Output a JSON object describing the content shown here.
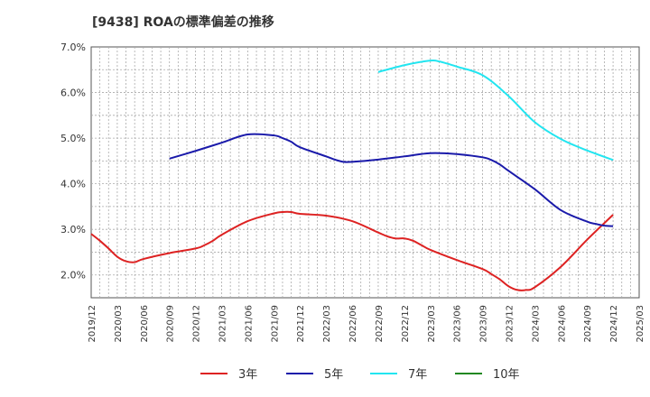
{
  "title": "[9438]  ROAの標準偏差の推移",
  "chart_data": {
    "type": "line",
    "title": "[9438]  ROAの標準偏差の推移",
    "xlabel": "",
    "ylabel": "",
    "x_ticks": [
      "2019/12",
      "2020/03",
      "2020/06",
      "2020/09",
      "2020/12",
      "2021/03",
      "2021/06",
      "2021/09",
      "2021/12",
      "2022/03",
      "2022/06",
      "2022/09",
      "2022/12",
      "2023/03",
      "2023/06",
      "2023/09",
      "2023/12",
      "2024/03",
      "2024/06",
      "2024/09",
      "2024/12",
      "2025/03"
    ],
    "y_ticks": [
      "2.0%",
      "3.0%",
      "4.0%",
      "5.0%",
      "6.0%",
      "7.0%"
    ],
    "ylim": [
      1.5,
      7.0
    ],
    "grid": true,
    "legend_position": "bottom",
    "series": [
      {
        "name": "3年",
        "color": "#dd2222",
        "x": [
          "2019/12",
          "2020/01",
          "2020/02",
          "2020/03",
          "2020/04",
          "2020/05",
          "2020/06",
          "2020/09",
          "2020/12",
          "2021/01",
          "2021/02",
          "2021/03",
          "2021/06",
          "2021/09",
          "2021/10",
          "2021/11",
          "2021/12",
          "2022/03",
          "2022/06",
          "2022/09",
          "2022/10",
          "2022/11",
          "2022/12",
          "2023/01",
          "2023/02",
          "2023/03",
          "2023/06",
          "2023/09",
          "2023/10",
          "2023/11",
          "2023/12",
          "2024/01",
          "2024/02",
          "2024/03",
          "2024/06",
          "2024/09",
          "2024/12"
        ],
        "values": [
          2.9,
          2.75,
          2.58,
          2.4,
          2.3,
          2.28,
          2.35,
          2.48,
          2.58,
          2.65,
          2.75,
          2.88,
          3.18,
          3.35,
          3.38,
          3.38,
          3.34,
          3.3,
          3.18,
          2.93,
          2.85,
          2.8,
          2.8,
          2.75,
          2.65,
          2.55,
          2.33,
          2.13,
          2.02,
          1.9,
          1.75,
          1.67,
          1.67,
          1.73,
          2.18,
          2.77,
          3.32
        ]
      },
      {
        "name": "5年",
        "color": "#1a1aaa",
        "x": [
          "2020/09",
          "2020/12",
          "2021/03",
          "2021/06",
          "2021/09",
          "2021/10",
          "2021/11",
          "2021/12",
          "2022/03",
          "2022/04",
          "2022/05",
          "2022/06",
          "2022/09",
          "2022/12",
          "2023/03",
          "2023/06",
          "2023/09",
          "2023/10",
          "2023/11",
          "2023/12",
          "2024/03",
          "2024/06",
          "2024/09",
          "2024/10",
          "2024/11",
          "2024/12"
        ],
        "values": [
          4.55,
          4.72,
          4.9,
          5.08,
          5.06,
          5.0,
          4.92,
          4.8,
          4.6,
          4.53,
          4.48,
          4.48,
          4.53,
          4.6,
          4.67,
          4.65,
          4.58,
          4.52,
          4.42,
          4.28,
          3.88,
          3.42,
          3.17,
          3.12,
          3.08,
          3.07
        ]
      },
      {
        "name": "7年",
        "color": "#22e5f0",
        "x": [
          "2022/09",
          "2022/12",
          "2023/03",
          "2023/04",
          "2023/05",
          "2023/06",
          "2023/09",
          "2023/12",
          "2024/03",
          "2024/06",
          "2024/09",
          "2024/12"
        ],
        "values": [
          6.45,
          6.6,
          6.7,
          6.68,
          6.63,
          6.57,
          6.38,
          5.92,
          5.35,
          4.98,
          4.73,
          4.52
        ]
      },
      {
        "name": "10年",
        "color": "#228822",
        "x": [],
        "values": []
      }
    ]
  }
}
